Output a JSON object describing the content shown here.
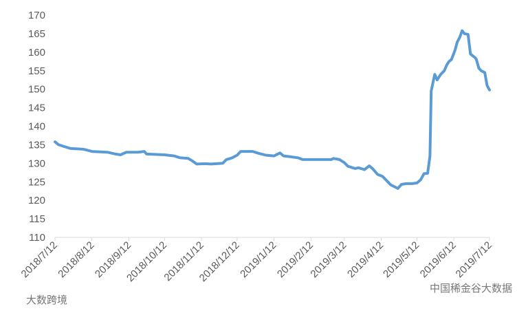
{
  "chart_data": {
    "type": "line",
    "color": "#5b9bd5",
    "x": [
      "2018/7/12",
      "2018/7/15",
      "2018/7/25",
      "2018/8/5",
      "2018/8/12",
      "2018/8/25",
      "2018/9/1",
      "2018/9/5",
      "2018/9/10",
      "2018/9/20",
      "2018/9/25",
      "2018/9/27",
      "2018/10/12",
      "2018/10/20",
      "2018/10/25",
      "2018/11/1",
      "2018/11/5",
      "2018/11/8",
      "2018/11/15",
      "2018/11/20",
      "2018/11/30",
      "2018/12/3",
      "2018/12/8",
      "2018/12/12",
      "2018/12/15",
      "2018/12/25",
      "2018/12/30",
      "2019/1/5",
      "2019/1/12",
      "2019/1/17",
      "2019/1/20",
      "2019/1/25",
      "2019/2/1",
      "2019/2/5",
      "2019/2/12",
      "2019/3/1",
      "2019/3/3",
      "2019/3/8",
      "2019/3/12",
      "2019/3/15",
      "2019/3/21",
      "2019/3/24",
      "2019/3/29",
      "2019/4/2",
      "2019/4/5",
      "2019/4/9",
      "2019/4/13",
      "2019/4/17",
      "2019/4/20",
      "2019/4/26",
      "2019/4/29",
      "2019/5/3",
      "2019/5/8",
      "2019/5/12",
      "2019/5/15",
      "2019/5/18",
      "2019/5/21",
      "2019/5/23",
      "2019/5/24",
      "2019/5/26",
      "2019/5/27",
      "2019/5/29",
      "2019/6/1",
      "2019/6/4",
      "2019/6/6",
      "2019/6/8",
      "2019/6/10",
      "2019/6/13",
      "2019/6/15",
      "2019/6/17",
      "2019/6/19",
      "2019/6/21",
      "2019/6/24",
      "2019/6/26",
      "2019/6/30",
      "2019/7/1",
      "2019/7/3",
      "2019/7/5",
      "2019/7/8",
      "2019/7/10",
      "2019/7/12"
    ],
    "values": [
      135.8,
      135,
      134,
      133.8,
      133.2,
      133,
      132.5,
      132.3,
      133,
      133,
      133.2,
      132.5,
      132.3,
      132,
      131.5,
      131.3,
      130.5,
      129.8,
      129.9,
      129.8,
      130,
      131,
      131.5,
      132.2,
      133.2,
      133.2,
      132.7,
      132.2,
      132,
      132.8,
      132,
      131.8,
      131.5,
      131,
      131,
      131,
      131.3,
      131,
      130.2,
      129.2,
      128.6,
      128.8,
      128.3,
      129.3,
      128.5,
      127,
      126.5,
      125.2,
      124.2,
      123.2,
      124.3,
      124.5,
      124.5,
      124.7,
      125.5,
      127.2,
      127.3,
      132,
      149.5,
      152.5,
      154,
      152.5,
      154,
      155,
      156.5,
      157.5,
      158,
      160.5,
      162.8,
      164,
      165.8,
      165,
      164.8,
      159.5,
      158.5,
      158,
      155.7,
      155,
      154.5,
      151,
      149.8
    ],
    "xlim": [
      "2018/7/12",
      "2019/7/12"
    ],
    "xticks": [
      "2018/7/12",
      "2018/8/12",
      "2018/9/12",
      "2018/10/12",
      "2018/11/12",
      "2018/12/12",
      "2019/1/12",
      "2019/2/12",
      "2019/3/12",
      "2019/4/12",
      "2019/5/12",
      "2019/6/12",
      "2019/7/12"
    ],
    "ylim": [
      110,
      170
    ],
    "yticks": [
      110,
      115,
      120,
      125,
      130,
      135,
      140,
      145,
      150,
      155,
      160,
      165,
      170
    ],
    "grid": false,
    "watermarks": [
      "中国稀金谷大数据",
      "大数跨境"
    ]
  }
}
